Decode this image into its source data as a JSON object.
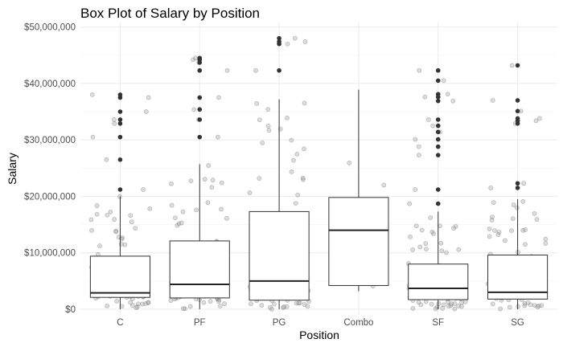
{
  "chart_data": {
    "type": "box",
    "title": "Box Plot of Salary by Position",
    "xlabel": "Position",
    "ylabel": "Salary",
    "categories": [
      "C",
      "PF",
      "PG",
      "Combo",
      "SF",
      "SG"
    ],
    "ylim": [
      -1000000,
      50800000
    ],
    "y_ticks": [
      0,
      10000000,
      20000000,
      30000000,
      40000000,
      50000000
    ],
    "y_tick_labels": [
      "$0",
      "$10,000,000",
      "$20,000,000",
      "$30,000,000",
      "$40,000,000",
      "$50,000,000"
    ],
    "grid": true,
    "boxes": [
      {
        "category": "C",
        "q1": 2100000,
        "median": 2900000,
        "q3": 9400000,
        "whisker_low": 0,
        "whisker_high": 20000000,
        "outliers": [
          21200000,
          26500000,
          30500000,
          32900000,
          33600000,
          35000000,
          37500000,
          38000000
        ]
      },
      {
        "category": "PF",
        "q1": 2000000,
        "median": 4400000,
        "q3": 12100000,
        "whisker_low": 0,
        "whisker_high": 25700000,
        "outliers": [
          30500000,
          33600000,
          35400000,
          37500000,
          42300000,
          43700000,
          44200000,
          44500000
        ]
      },
      {
        "category": "PG",
        "q1": 1600000,
        "median": 5000000,
        "q3": 17300000,
        "whisker_low": 0,
        "whisker_high": 37200000,
        "outliers": [
          42300000,
          47000000,
          47400000,
          48000000
        ]
      },
      {
        "category": "Combo",
        "q1": 4200000,
        "median": 14000000,
        "q3": 19800000,
        "whisker_low": 3200000,
        "whisker_high": 38900000,
        "outliers": []
      },
      {
        "category": "SF",
        "q1": 1700000,
        "median": 3700000,
        "q3": 8000000,
        "whisker_low": 0,
        "whisker_high": 17300000,
        "outliers": [
          18700000,
          21200000,
          27300000,
          28800000,
          30100000,
          31400000,
          32500000,
          33600000,
          36900000,
          37600000,
          38100000,
          40500000,
          42300000
        ]
      },
      {
        "category": "SG",
        "q1": 1800000,
        "median": 3000000,
        "q3": 9600000,
        "whisker_low": 0,
        "whisker_high": 19500000,
        "outliers": [
          21500000,
          22300000,
          32900000,
          33400000,
          33800000,
          35100000,
          37000000,
          43200000
        ]
      }
    ],
    "jitter_points_shown": true
  }
}
